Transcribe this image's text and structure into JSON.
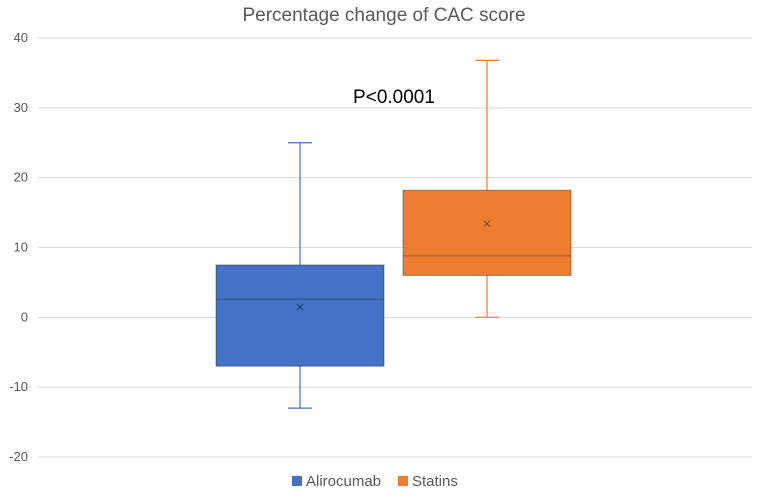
{
  "chart_data": {
    "type": "box",
    "title": "Percentage change of CAC score",
    "xlabel": "",
    "ylabel": "",
    "ylim": [
      -20,
      40
    ],
    "yticks": [
      -20,
      -10,
      0,
      10,
      20,
      30,
      40
    ],
    "grid": true,
    "legend_position": "bottom",
    "annotation": "P<0.0001",
    "series": [
      {
        "name": "Alirocumab",
        "color": "#4472C4",
        "min": -13,
        "q1": -7,
        "median": 2.6,
        "q3": 7.5,
        "max": 25,
        "mean": 1.5
      },
      {
        "name": "Statins",
        "color": "#ED7D31",
        "min": 0,
        "q1": 6,
        "median": 8.8,
        "q3": 18.2,
        "max": 36.8,
        "mean": 13.4
      }
    ]
  }
}
